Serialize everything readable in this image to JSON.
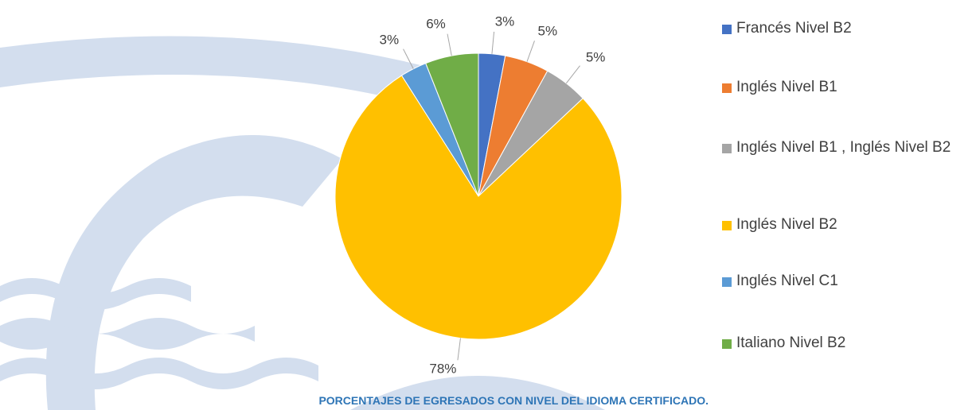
{
  "chart_data": {
    "type": "pie",
    "title": "PORCENTAJES DE EGRESADOS CON NIVEL DEL IDIOMA CERTIFICADO.",
    "categories": [
      "Francés Nivel B2",
      "Inglés Nivel B1",
      "Inglés Nivel B1 , Inglés Nivel B2",
      "Inglés Nivel B2",
      "Inglés Nivel C1",
      "Italiano Nivel B2"
    ],
    "values": [
      3,
      5,
      5,
      78,
      3,
      6
    ],
    "value_labels": [
      "3%",
      "5%",
      "5%",
      "78%",
      "3%",
      "6%"
    ],
    "colors": [
      "#4472c4",
      "#ed7d31",
      "#a5a5a5",
      "#ffc000",
      "#5b9bd5",
      "#70ad47"
    ],
    "legend": "right"
  }
}
